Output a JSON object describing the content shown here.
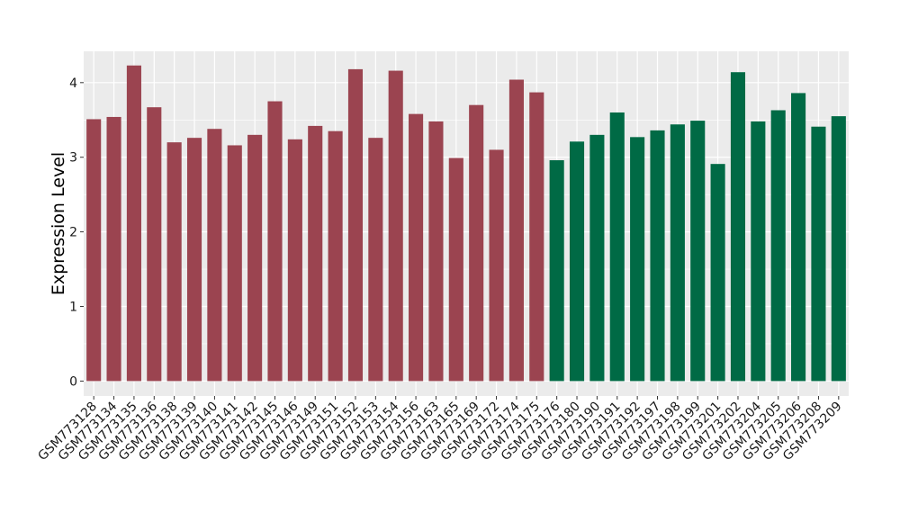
{
  "chart_data": {
    "type": "bar",
    "title": "",
    "xlabel": "",
    "ylabel": "Expression Level",
    "ylim": [
      -0.2,
      4.42
    ],
    "yticks": [
      0,
      1,
      2,
      3,
      4
    ],
    "grid": true,
    "legend": "none",
    "panel_background": "#ebebeb",
    "grid_color": "#ffffff",
    "categories": [
      "GSM773128",
      "GSM773134",
      "GSM773135",
      "GSM773136",
      "GSM773138",
      "GSM773139",
      "GSM773140",
      "GSM773141",
      "GSM773142",
      "GSM773145",
      "GSM773146",
      "GSM773149",
      "GSM773151",
      "GSM773152",
      "GSM773153",
      "GSM773154",
      "GSM773156",
      "GSM773163",
      "GSM773165",
      "GSM773169",
      "GSM773172",
      "GSM773174",
      "GSM773175",
      "GSM773176",
      "GSM773180",
      "GSM773190",
      "GSM773191",
      "GSM773192",
      "GSM773197",
      "GSM773198",
      "GSM773199",
      "GSM773201",
      "GSM773202",
      "GSM773204",
      "GSM773205",
      "GSM773206",
      "GSM773208",
      "GSM773209"
    ],
    "series": [
      {
        "color": "#9b4450",
        "values": [
          3.51,
          3.54,
          4.23,
          3.67,
          3.2,
          3.26,
          3.38,
          3.16,
          3.3,
          3.75,
          3.24,
          3.42,
          3.35,
          4.18,
          3.26,
          4.16,
          3.58,
          3.48,
          2.99,
          3.7,
          3.1,
          4.04,
          3.87,
          null,
          null,
          null,
          null,
          null,
          null,
          null,
          null,
          null,
          null,
          null,
          null,
          null,
          null,
          null
        ]
      },
      {
        "color": "#006a45",
        "values": [
          null,
          null,
          null,
          null,
          null,
          null,
          null,
          null,
          null,
          null,
          null,
          null,
          null,
          null,
          null,
          null,
          null,
          null,
          null,
          null,
          null,
          null,
          null,
          2.96,
          3.21,
          3.3,
          3.6,
          3.27,
          3.36,
          3.44,
          3.49,
          2.91,
          4.14,
          3.48,
          3.63,
          3.86,
          3.41,
          3.55
        ]
      }
    ]
  }
}
